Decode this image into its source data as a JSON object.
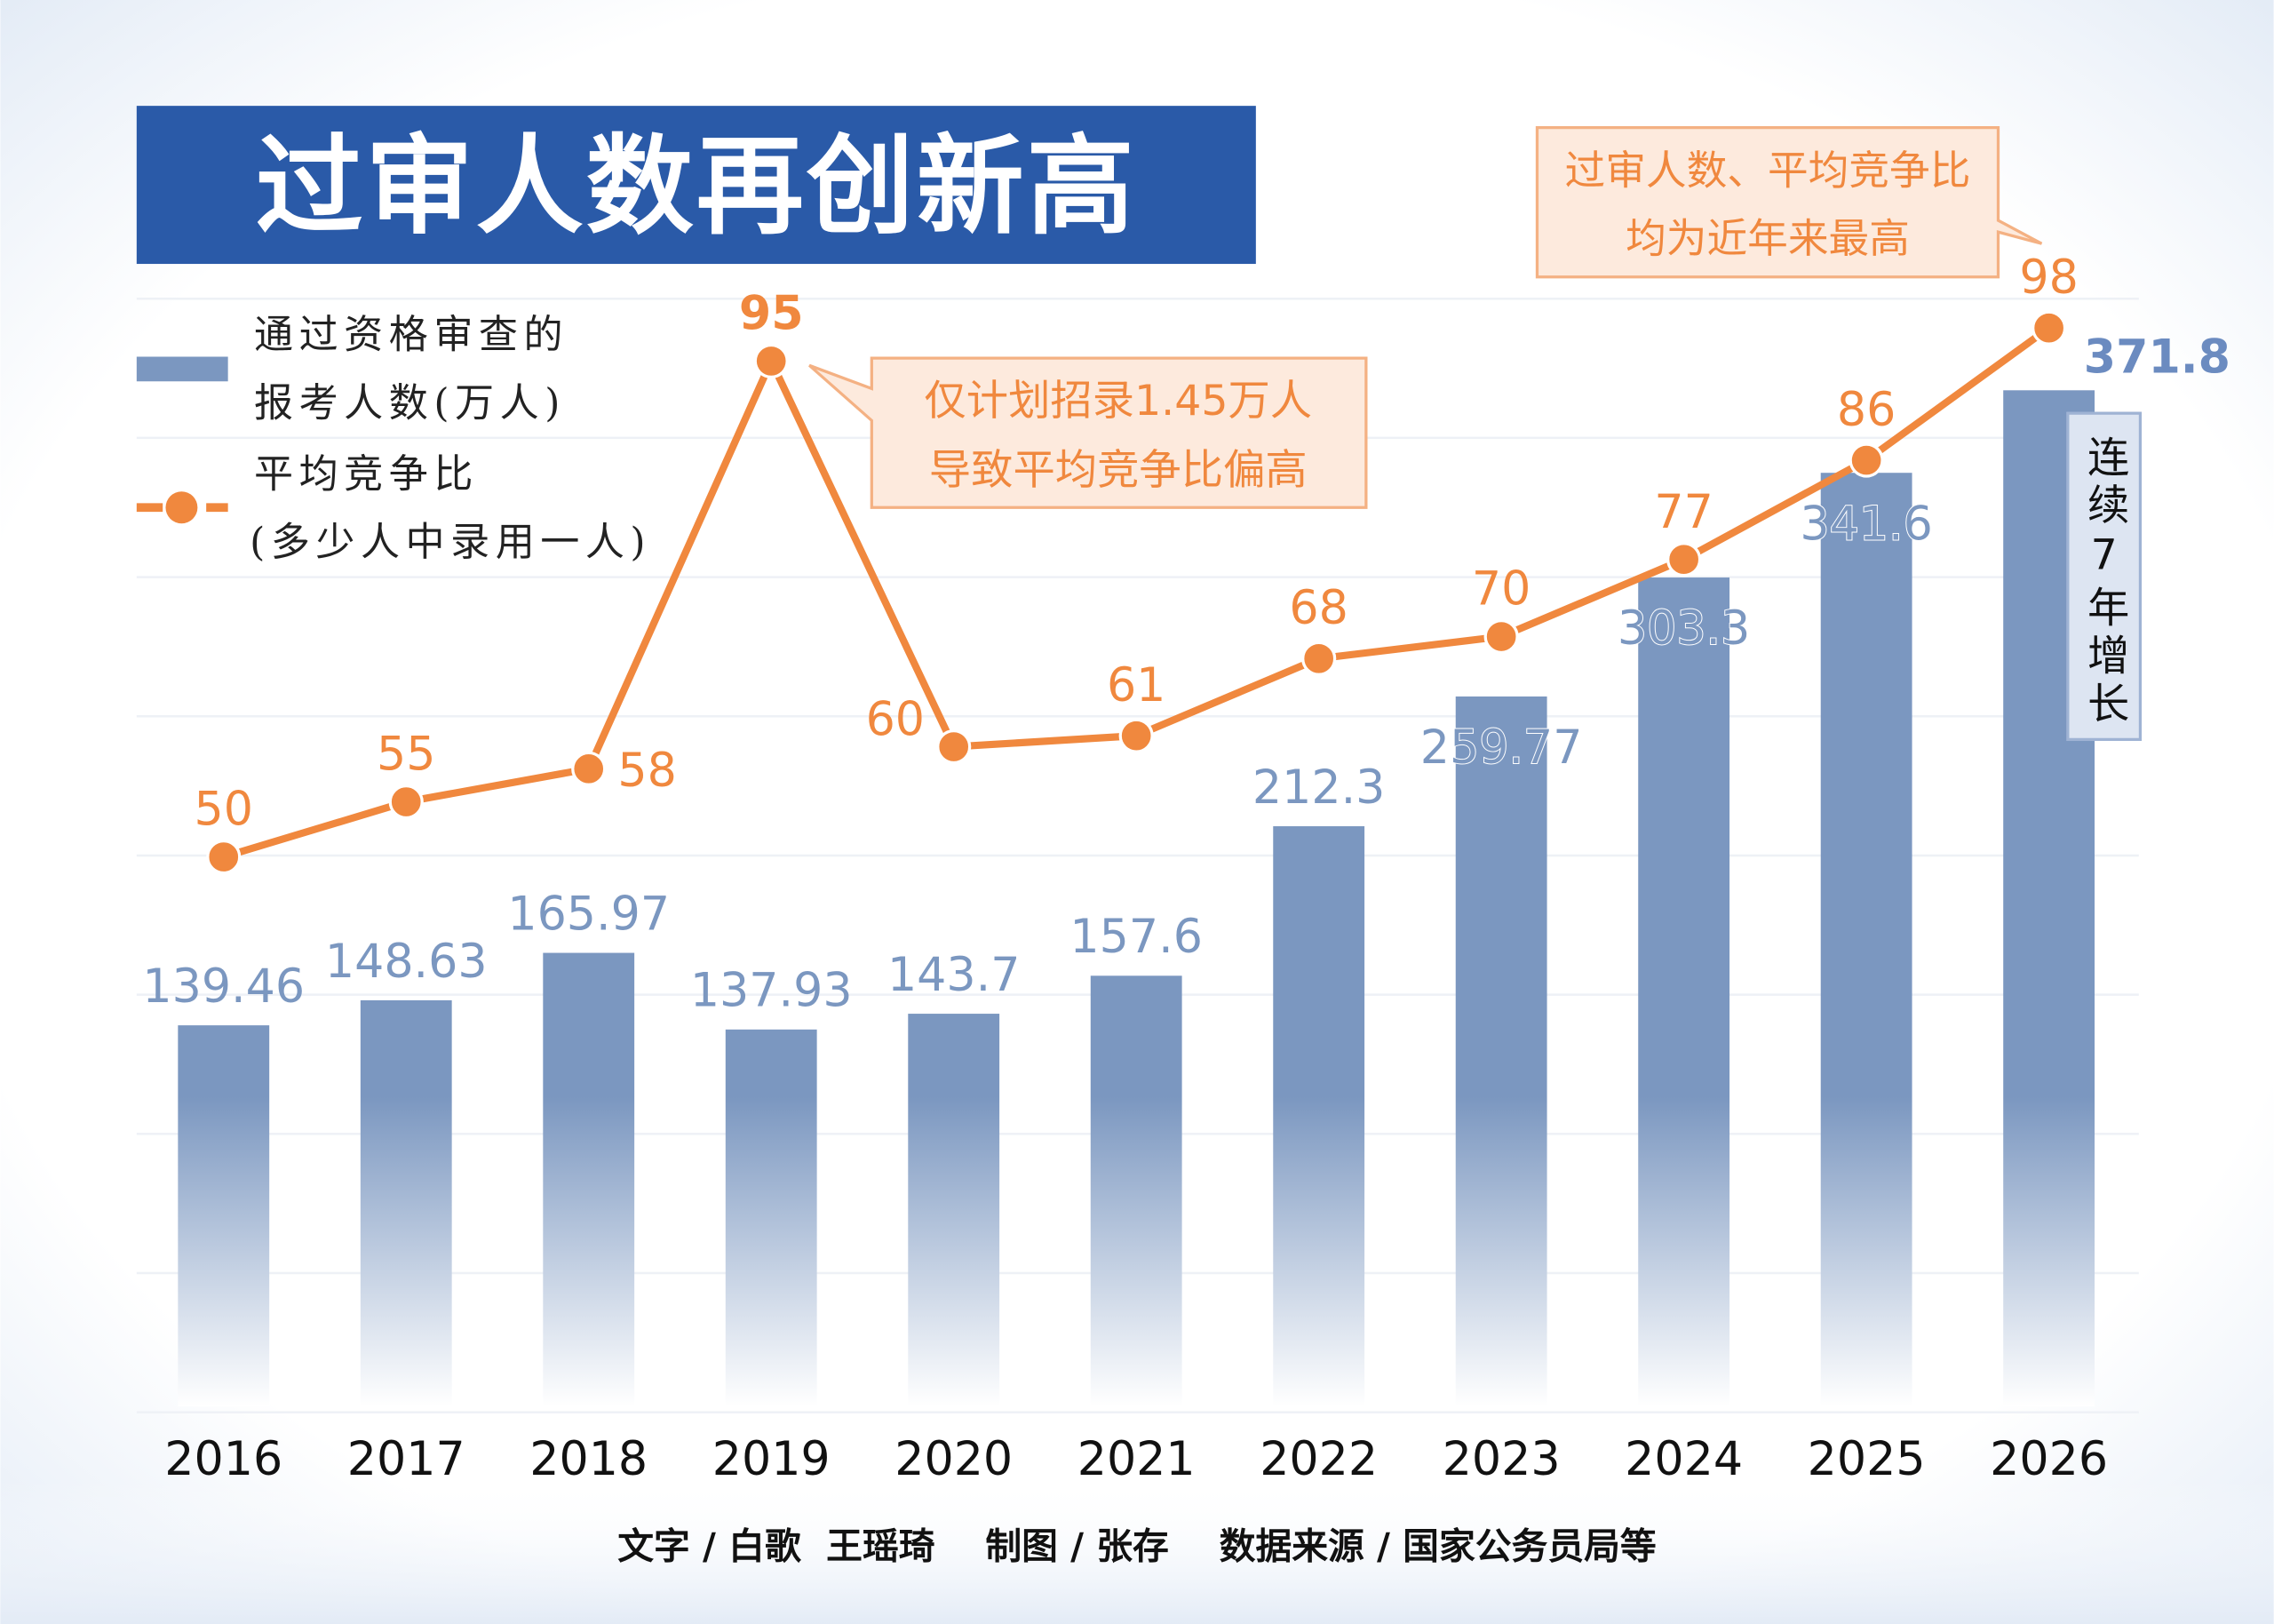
{
  "title": "过审人数再创新高",
  "legend": {
    "bar_label_line1": "通过资格审查的",
    "bar_label_line2": "报考人数(万人)",
    "line_label_line1": "平均竞争比",
    "line_label_line2": "(多少人中录用一人)"
  },
  "annotations": {
    "peak_line1": "仅计划招录1.45万人",
    "peak_line2": "导致平均竞争比偏高",
    "record_line1": "过审人数、平均竞争比",
    "record_line2": "均为近年来最高",
    "streak": "连续7年增长"
  },
  "footer": "文字 / 白歌  王瑶琦    制图 / 张存    数据来源 / 国家公务员局等",
  "colors": {
    "title_bg": "#2a5aa8",
    "bar": "#7b97c0",
    "line": "#f0883e",
    "callout_bg": "#fdeadd",
    "callout_border": "#f4b183"
  },
  "chart_data": {
    "type": "bar+line",
    "categories": [
      "2016",
      "2017",
      "2018",
      "2019",
      "2020",
      "2021",
      "2022",
      "2023",
      "2024",
      "2025",
      "2026"
    ],
    "series": [
      {
        "name": "通过资格审查的报考人数(万人)",
        "type": "bar",
        "values": [
          139.46,
          148.63,
          165.97,
          137.93,
          143.7,
          157.6,
          212.3,
          259.77,
          303.3,
          341.6,
          371.8
        ],
        "labels": [
          "139.46",
          "148.63",
          "165.97",
          "137.93",
          "143.7",
          "157.6",
          "212.3",
          "259.77",
          "303.3",
          "341.6",
          "371.8"
        ]
      },
      {
        "name": "平均竞争比(多少人中录用一人)",
        "type": "line",
        "values": [
          50,
          55,
          58,
          95,
          60,
          61,
          68,
          70,
          77,
          86,
          98
        ]
      }
    ],
    "grid": true,
    "legend_position": "top-left"
  }
}
